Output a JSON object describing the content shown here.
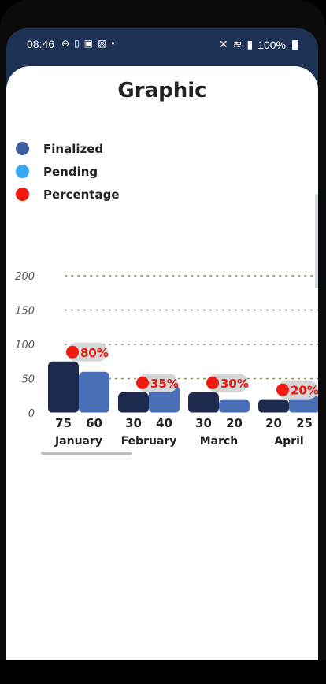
{
  "status_bar": {
    "time": "08:46",
    "battery": "100%",
    "left_icons": [
      "minus-circle-icon",
      "phone-icon",
      "app-icon",
      "image-icon",
      "dot-icon"
    ],
    "right_icons": [
      "mute-icon",
      "wifi-icon",
      "signal-icon",
      "battery-icon"
    ]
  },
  "page": {
    "title": "Graphic"
  },
  "legend": [
    {
      "label": "Finalized",
      "color": "#3f5fa5"
    },
    {
      "label": "Pending",
      "color": "#35a8f0"
    },
    {
      "label": "Percentage",
      "color": "#f0190f"
    }
  ],
  "chart_data": {
    "type": "bar",
    "categories": [
      "January",
      "February",
      "March",
      "April"
    ],
    "series": [
      {
        "name": "Finalized",
        "values": [
          75,
          30,
          30,
          20
        ],
        "color": "#1b2a4d"
      },
      {
        "name": "Pending",
        "values": [
          60,
          40,
          20,
          25
        ],
        "color": "#4a6db8"
      }
    ],
    "percentages": [
      "80%",
      "35%",
      "30%",
      "20%"
    ],
    "y_ticks": [
      "0",
      "50",
      "100",
      "150",
      "200"
    ],
    "ylim": [
      0,
      200
    ],
    "grid": "dotted",
    "legend": "top-left"
  }
}
